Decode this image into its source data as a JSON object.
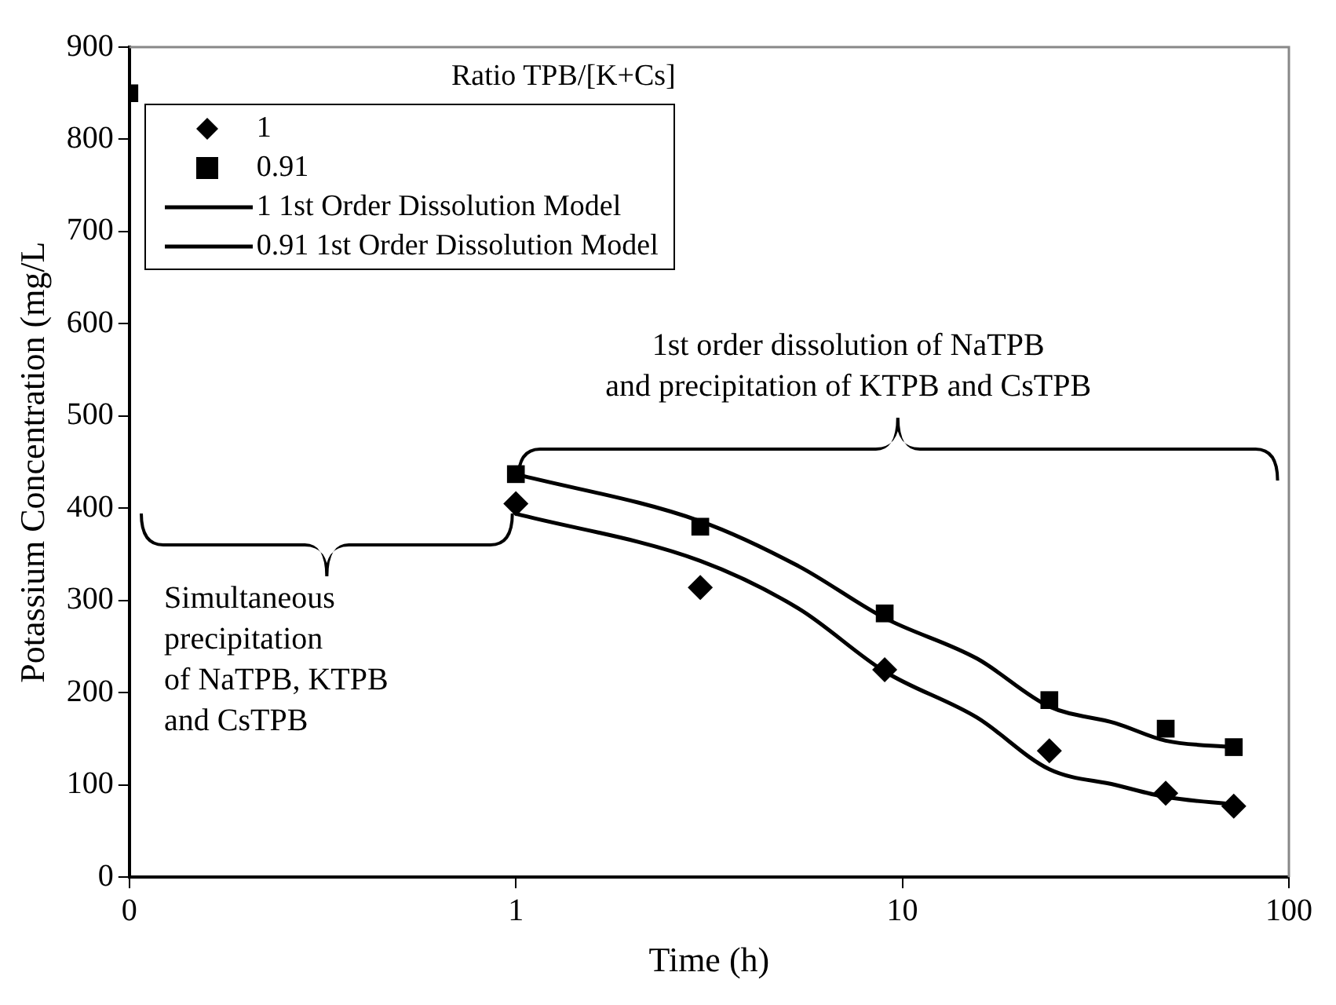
{
  "chart_data": {
    "type": "scatter",
    "xlabel": "Time (h)",
    "ylabel": "Potassium Concentration (mg/L",
    "legend_title": "Ratio TPB/[K+Cs]",
    "log": "x",
    "xlim": [
      0.1,
      100
    ],
    "xticks": [
      {
        "value": 0.1,
        "label": "0"
      },
      1,
      10,
      100
    ],
    "ylim": [
      0,
      900
    ],
    "yticks": [
      0,
      100,
      200,
      300,
      400,
      500,
      600,
      700,
      800,
      900
    ],
    "grid": false,
    "legend": "top left",
    "series": [
      {
        "name": "1",
        "marker": "diamond",
        "color": "#000000",
        "x": [
          1,
          3,
          9,
          24,
          48,
          72
        ],
        "values": [
          405,
          314,
          225,
          137,
          91,
          77
        ]
      },
      {
        "name": "0.91",
        "marker": "square",
        "color": "#000000",
        "x": [
          0.1,
          1,
          3,
          9,
          24,
          48,
          72
        ],
        "values": [
          850,
          437,
          380,
          286,
          192,
          161,
          141
        ]
      },
      {
        "name": "1 1st Order Dissolution Model",
        "type": "line",
        "marker": "none",
        "line_style": "solid",
        "color": "#000000",
        "x": [
          1,
          3,
          5.4,
          9,
          15.6,
          24,
          35.6,
          48,
          72
        ],
        "values": [
          394,
          343,
          291,
          223,
          173,
          117,
          100,
          87,
          79
        ]
      },
      {
        "name": "0.91 1st Order Dissolution Model",
        "type": "line",
        "marker": "none",
        "line_style": "solid",
        "color": "#000000",
        "x": [
          1,
          3,
          5.4,
          9,
          15.6,
          24,
          35.6,
          48,
          72
        ],
        "values": [
          437,
          386,
          337,
          281,
          237,
          185,
          167,
          148,
          141
        ]
      }
    ],
    "annotations": [
      "1st order dissolution of NaTPB\nand precipitation of KTPB and CsTPB",
      "Simultaneous\nprecipitation\nof NaTPB, KTPB\nand CsTPB"
    ]
  }
}
